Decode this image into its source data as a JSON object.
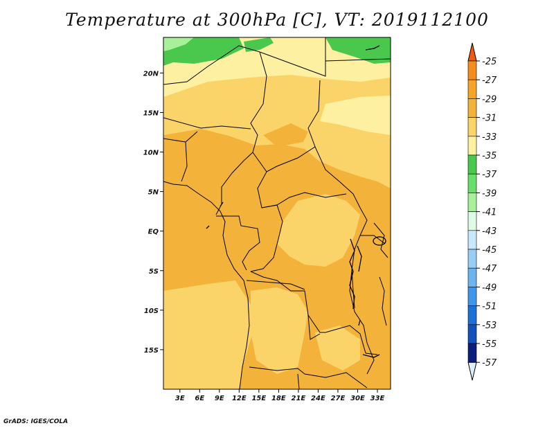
{
  "title": "Temperature at 300hPa [C], VT: 2019112100",
  "credit": "GrADS: IGES/COLA",
  "map": {
    "lat_labels": [
      "20N",
      "15N",
      "10N",
      "5N",
      "EQ",
      "5S",
      "10S",
      "15S"
    ],
    "lon_labels": [
      "3E",
      "6E",
      "9E",
      "12E",
      "15E",
      "18E",
      "21E",
      "24E",
      "27E",
      "30E",
      "33E"
    ],
    "lat_values": [
      20,
      15,
      10,
      5,
      0,
      -5,
      -10,
      -15
    ],
    "lon_values": [
      3,
      6,
      9,
      12,
      15,
      18,
      21,
      24,
      27,
      30,
      33
    ],
    "lon_range": [
      0.5,
      35
    ],
    "lat_range": [
      -20,
      24.5
    ],
    "colors": {
      "warm": "#f3b33b",
      "mid": "#fbd469",
      "cool": "#fdf0a0",
      "green": "#49c84d",
      "lightgreen": "#a8f09a",
      "border": "#000000"
    }
  },
  "colorbar": {
    "labels": [
      "-25",
      "-27",
      "-29",
      "-31",
      "-33",
      "-35",
      "-37",
      "-39",
      "-41",
      "-43",
      "-45",
      "-47",
      "-49",
      "-51",
      "-53",
      "-55",
      "-57"
    ],
    "colors": [
      "#f25a12",
      "#f58c1e",
      "#f6a528",
      "#f3b33b",
      "#fbd469",
      "#fdf0a0",
      "#49c84d",
      "#6ade6b",
      "#a8f09a",
      "#ddfbe5",
      "#c8e8fb",
      "#98cdf6",
      "#6cb4f0",
      "#3e97ea",
      "#1f6fd8",
      "#1450bb",
      "#0a1e7d",
      "#deeefd"
    ]
  }
}
